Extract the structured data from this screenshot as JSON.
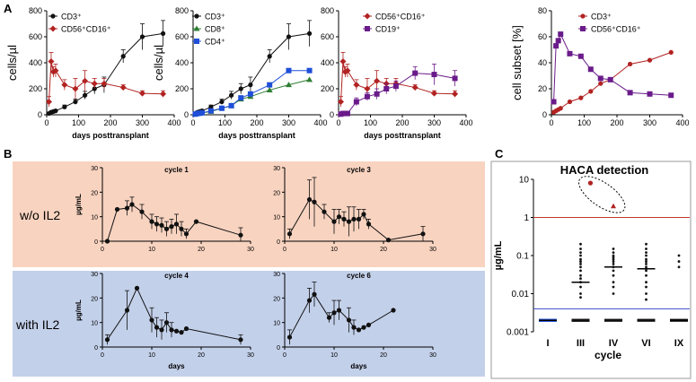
{
  "panel_letters": {
    "a": "A",
    "b": "B",
    "c": "C"
  },
  "colors": {
    "black": "#111111",
    "red": "#b22222",
    "green": "#2e7d32",
    "blue": "#1f4fd8",
    "purple": "#6a1b8a",
    "orange_bg": "#f8d3c0",
    "blue_bg": "#c3d0ea",
    "red_line": "#c0392b",
    "blue_line": "#3b4fc4"
  },
  "chart_data": [
    {
      "id": "A1",
      "type": "line",
      "ylabel": "cells/µl",
      "xlabel": "days posttransplant",
      "xlim": [
        0,
        400
      ],
      "ylim": [
        0,
        800
      ],
      "xticks": [
        0,
        100,
        200,
        300,
        400
      ],
      "yticks": [
        0,
        200,
        400,
        600,
        800
      ],
      "series": [
        {
          "name": "CD3⁺",
          "color": "black",
          "marker": "circle",
          "x": [
            7,
            14,
            21,
            28,
            56,
            90,
            120,
            150,
            180,
            240,
            300,
            365
          ],
          "y": [
            10,
            20,
            25,
            30,
            60,
            100,
            150,
            200,
            230,
            450,
            600,
            625
          ],
          "err": [
            5,
            8,
            10,
            10,
            15,
            20,
            30,
            40,
            60,
            50,
            100,
            100
          ]
        },
        {
          "name": "CD56⁺CD16⁺",
          "color": "red",
          "marker": "diamond",
          "x": [
            7,
            14,
            21,
            28,
            56,
            90,
            120,
            150,
            180,
            240,
            300,
            365
          ],
          "y": [
            100,
            410,
            330,
            340,
            230,
            200,
            260,
            240,
            240,
            210,
            165,
            160
          ],
          "err": [
            40,
            70,
            40,
            50,
            40,
            80,
            80,
            40,
            40,
            20,
            20,
            25
          ]
        }
      ]
    },
    {
      "id": "A2",
      "type": "line",
      "ylabel": "cells/µl",
      "xlabel": "days posttransplant",
      "xlim": [
        0,
        400
      ],
      "ylim": [
        0,
        800
      ],
      "xticks": [
        0,
        100,
        200,
        300,
        400
      ],
      "yticks": [
        0,
        200,
        400,
        600,
        800
      ],
      "series": [
        {
          "name": "CD3⁺",
          "color": "black",
          "marker": "circle",
          "x": [
            7,
            14,
            21,
            28,
            56,
            90,
            120,
            150,
            180,
            240,
            300,
            365
          ],
          "y": [
            10,
            20,
            25,
            30,
            60,
            100,
            150,
            200,
            230,
            450,
            600,
            625
          ],
          "err": [
            5,
            8,
            10,
            10,
            15,
            20,
            30,
            40,
            60,
            50,
            100,
            100
          ]
        },
        {
          "name": "CD8⁺",
          "color": "green",
          "marker": "triangle",
          "x": [
            7,
            14,
            21,
            28,
            56,
            90,
            120,
            150,
            180,
            240,
            300,
            365
          ],
          "y": [
            5,
            10,
            12,
            15,
            25,
            50,
            70,
            120,
            140,
            190,
            230,
            270
          ],
          "err": [
            0,
            0,
            0,
            0,
            0,
            0,
            0,
            0,
            0,
            0,
            0,
            0
          ]
        },
        {
          "name": "CD4⁺",
          "color": "blue",
          "marker": "square",
          "x": [
            7,
            14,
            21,
            28,
            56,
            90,
            120,
            150,
            180,
            240,
            300,
            365
          ],
          "y": [
            5,
            10,
            12,
            15,
            30,
            50,
            70,
            130,
            160,
            230,
            340,
            340
          ],
          "err": [
            0,
            0,
            0,
            0,
            0,
            0,
            0,
            0,
            0,
            0,
            0,
            0
          ]
        }
      ]
    },
    {
      "id": "A3",
      "type": "line",
      "ylabel": "",
      "xlabel": "days posttransplant",
      "xlim": [
        0,
        400
      ],
      "ylim": [
        0,
        800
      ],
      "xticks": [
        0,
        100,
        200,
        300,
        400
      ],
      "yticks": [
        0,
        200,
        400,
        600,
        800
      ],
      "series": [
        {
          "name": "CD56⁺CD16⁺",
          "color": "red",
          "marker": "diamond",
          "x": [
            7,
            14,
            21,
            28,
            56,
            90,
            120,
            150,
            180,
            240,
            300,
            365
          ],
          "y": [
            100,
            410,
            330,
            340,
            230,
            200,
            260,
            240,
            240,
            210,
            165,
            160
          ],
          "err": [
            40,
            70,
            40,
            50,
            40,
            80,
            80,
            40,
            40,
            20,
            20,
            25
          ]
        },
        {
          "name": "CD19⁺",
          "color": "purple",
          "marker": "square",
          "x": [
            7,
            14,
            21,
            28,
            56,
            90,
            120,
            150,
            180,
            240,
            300,
            365
          ],
          "y": [
            5,
            10,
            10,
            10,
            100,
            140,
            160,
            200,
            220,
            320,
            310,
            280
          ],
          "err": [
            5,
            5,
            5,
            5,
            30,
            30,
            40,
            40,
            40,
            50,
            80,
            60
          ]
        }
      ]
    },
    {
      "id": "A4",
      "type": "line",
      "ylabel": "cell subset [%]",
      "xlabel": "",
      "xlim": [
        0,
        400
      ],
      "ylim": [
        0,
        80
      ],
      "xticks": [
        0,
        100,
        200,
        300,
        400
      ],
      "yticks": [
        0,
        20,
        40,
        60,
        80
      ],
      "series": [
        {
          "name": "CD3⁺",
          "color": "red",
          "marker": "circle",
          "x": [
            7,
            14,
            21,
            28,
            56,
            90,
            120,
            150,
            180,
            240,
            300,
            365
          ],
          "y": [
            2,
            3,
            4,
            5,
            10,
            13,
            18,
            24,
            27,
            39,
            42,
            48
          ],
          "err": [
            0,
            0,
            0,
            0,
            0,
            0,
            0,
            0,
            0,
            0,
            0,
            0
          ]
        },
        {
          "name": "CD56⁺CD16⁺",
          "color": "purple",
          "marker": "square",
          "x": [
            7,
            14,
            21,
            28,
            56,
            90,
            120,
            150,
            180,
            240,
            300,
            365
          ],
          "y": [
            10,
            53,
            57,
            62,
            47,
            45,
            35,
            28,
            27,
            17,
            16,
            15
          ],
          "err": [
            0,
            0,
            0,
            0,
            0,
            0,
            0,
            0,
            0,
            0,
            0,
            0
          ]
        }
      ]
    },
    {
      "id": "B1",
      "type": "line",
      "title": "cycle 1",
      "ylabel": "µg/mL",
      "xlabel": "",
      "xlim": [
        0,
        30
      ],
      "ylim": [
        0,
        30
      ],
      "xticks": [
        0,
        10,
        20,
        30
      ],
      "yticks": [
        0,
        10,
        20,
        30
      ],
      "series": [
        {
          "name": "cycle 1",
          "x": [
            1,
            3,
            5,
            6,
            8,
            10,
            11,
            12,
            13,
            14,
            15,
            16,
            17,
            19,
            28
          ],
          "y": [
            0,
            13,
            13.5,
            15,
            12,
            8,
            7,
            6.5,
            5,
            6,
            7,
            5,
            3,
            8,
            2.5
          ],
          "err": [
            0,
            0,
            3,
            3,
            3,
            3,
            3,
            3,
            3,
            3,
            4,
            3,
            2,
            0,
            3
          ]
        }
      ]
    },
    {
      "id": "B2",
      "type": "line",
      "title": "cycle 3",
      "ylabel": "",
      "xlabel": "",
      "xlim": [
        0,
        30
      ],
      "ylim": [
        0,
        30
      ],
      "xticks": [
        0,
        10,
        20,
        30
      ],
      "yticks": [
        0,
        10,
        20,
        30
      ],
      "series": [
        {
          "name": "cycle 3",
          "x": [
            1,
            5,
            6,
            8,
            10,
            11,
            12,
            13,
            14,
            15,
            16,
            17,
            21,
            28
          ],
          "y": [
            3,
            17,
            16,
            12,
            8,
            10,
            9,
            8,
            9,
            9,
            11,
            7,
            0.5,
            3
          ],
          "err": [
            2,
            8,
            10,
            3,
            5,
            3,
            3,
            6,
            5,
            4,
            2,
            2,
            0,
            3
          ]
        }
      ]
    },
    {
      "id": "B3",
      "type": "line",
      "title": "cycle 4",
      "ylabel": "µg/mL",
      "xlabel": "days",
      "xlim": [
        0,
        30
      ],
      "ylim": [
        0,
        30
      ],
      "xticks": [
        0,
        10,
        20,
        30
      ],
      "yticks": [
        0,
        10,
        20,
        30
      ],
      "series": [
        {
          "name": "cycle 4",
          "x": [
            1,
            5,
            7,
            10,
            11,
            12,
            13,
            14,
            15,
            16,
            17,
            28
          ],
          "y": [
            3,
            15,
            24,
            11,
            8,
            7,
            10,
            7,
            6.5,
            6,
            7.5,
            3
          ],
          "err": [
            2,
            8,
            0,
            5,
            4,
            4,
            4,
            3,
            0,
            0,
            0,
            2
          ]
        }
      ]
    },
    {
      "id": "B4",
      "type": "line",
      "title": "cycle 6",
      "ylabel": "",
      "xlabel": "days",
      "xlim": [
        0,
        30
      ],
      "ylim": [
        0,
        30
      ],
      "xticks": [
        0,
        10,
        20,
        30
      ],
      "yticks": [
        0,
        10,
        20,
        30
      ],
      "series": [
        {
          "name": "cycle 6",
          "x": [
            1,
            5,
            6,
            9,
            10,
            11,
            13,
            14,
            15,
            16,
            17,
            22
          ],
          "y": [
            4,
            19,
            21.5,
            12,
            14,
            15,
            11,
            8,
            7,
            8,
            9,
            15
          ],
          "err": [
            3,
            5,
            5,
            2,
            5,
            4,
            5,
            3,
            0,
            0,
            0,
            0
          ]
        }
      ]
    },
    {
      "id": "C",
      "type": "scatter",
      "title": "HACA detection",
      "ylabel": "µg/mL",
      "xlabel": "cycle",
      "yscale": "log",
      "ylim": [
        0.001,
        10
      ],
      "yticks": [
        "10",
        "1",
        "0.1",
        "0.01",
        "0.001"
      ],
      "categories": [
        "I",
        "III",
        "IV",
        "VI",
        "IX"
      ],
      "reference_lines": [
        {
          "y": 1,
          "color": "red_line"
        },
        {
          "y": 0.004,
          "color": "blue_line"
        }
      ],
      "outliers": [
        {
          "category_index": 1.3,
          "y": 8,
          "shape": "circle"
        },
        {
          "category_index": 2.0,
          "y": 2,
          "shape": "triangle"
        }
      ],
      "medians": [
        0.002,
        0.02,
        0.05,
        0.045,
        0.002
      ],
      "points": [
        [
          0.002,
          0.002,
          0.002,
          0.002
        ],
        [
          0.2,
          0.15,
          0.12,
          0.1,
          0.08,
          0.07,
          0.06,
          0.05,
          0.04,
          0.03,
          0.025,
          0.02,
          0.015,
          0.01,
          0.008,
          0.002,
          0.002,
          0.002
        ],
        [
          0.15,
          0.12,
          0.1,
          0.09,
          0.08,
          0.07,
          0.06,
          0.05,
          0.04,
          0.03,
          0.02,
          0.015,
          0.01,
          0.002,
          0.002
        ],
        [
          0.2,
          0.15,
          0.12,
          0.1,
          0.08,
          0.07,
          0.06,
          0.05,
          0.045,
          0.04,
          0.03,
          0.02,
          0.015,
          0.01,
          0.007,
          0.002,
          0.002
        ],
        [
          0.1,
          0.07,
          0.05,
          0.002,
          0.002
        ]
      ]
    }
  ],
  "group_labels": {
    "wo_il2": "w/o IL2",
    "with_il2": "with IL2"
  }
}
